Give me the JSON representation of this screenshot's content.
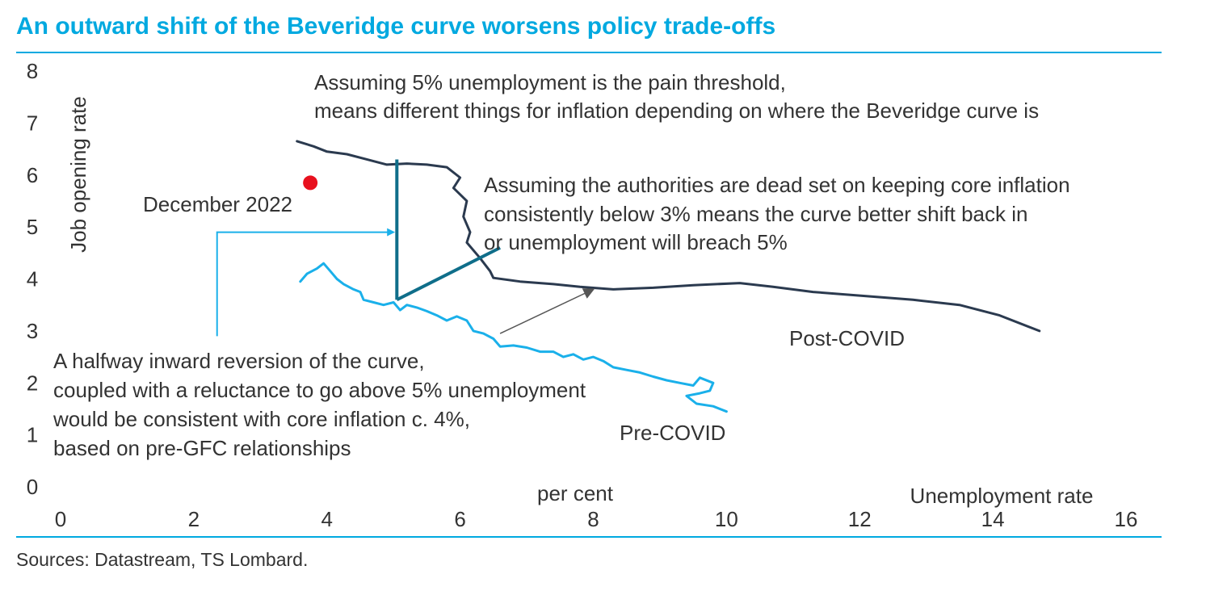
{
  "title": "An outward shift of the Beveridge curve worsens policy trade-offs",
  "source": "Sources: Datastream, TS Lombard.",
  "colors": {
    "title": "#00a9e0",
    "post_covid": "#2b3a4f",
    "pre_covid": "#1ab0ea",
    "arrows": "#0f6e8a",
    "marker": "#e8101e",
    "annotation_arrow": "#555555"
  },
  "chart_data": {
    "type": "line",
    "title": "An outward shift of the Beveridge curve worsens policy trade-offs",
    "xlabel": "Unemployment rate",
    "xunit": "per cent",
    "ylabel": "Job opening rate",
    "xlim": [
      0,
      16
    ],
    "ylim": [
      0,
      8
    ],
    "xticks": [
      "0",
      "2",
      "4",
      "6",
      "8",
      "10",
      "12",
      "14",
      "16"
    ],
    "yticks": [
      "0",
      "1",
      "2",
      "3",
      "4",
      "5",
      "6",
      "7",
      "8"
    ],
    "grid": false,
    "series": [
      {
        "name": "Post-COVID",
        "points": [
          [
            3.55,
            6.65
          ],
          [
            3.8,
            6.55
          ],
          [
            4.0,
            6.45
          ],
          [
            4.3,
            6.4
          ],
          [
            4.6,
            6.3
          ],
          [
            4.9,
            6.2
          ],
          [
            5.2,
            6.22
          ],
          [
            5.5,
            6.2
          ],
          [
            5.8,
            6.15
          ],
          [
            6.0,
            5.95
          ],
          [
            5.9,
            5.75
          ],
          [
            6.1,
            5.5
          ],
          [
            6.05,
            5.2
          ],
          [
            6.15,
            4.9
          ],
          [
            6.1,
            4.7
          ],
          [
            6.3,
            4.4
          ],
          [
            6.45,
            4.15
          ],
          [
            6.5,
            4.02
          ],
          [
            6.9,
            3.95
          ],
          [
            7.4,
            3.9
          ],
          [
            7.8,
            3.85
          ],
          [
            8.3,
            3.8
          ],
          [
            8.9,
            3.83
          ],
          [
            9.5,
            3.88
          ],
          [
            10.2,
            3.92
          ],
          [
            10.7,
            3.85
          ],
          [
            11.3,
            3.75
          ],
          [
            12.0,
            3.68
          ],
          [
            12.8,
            3.6
          ],
          [
            13.5,
            3.5
          ],
          [
            14.1,
            3.3
          ],
          [
            14.7,
            3.0
          ]
        ]
      },
      {
        "name": "Pre-COVID",
        "points": [
          [
            3.6,
            3.95
          ],
          [
            3.7,
            4.1
          ],
          [
            3.85,
            4.2
          ],
          [
            3.95,
            4.3
          ],
          [
            4.05,
            4.15
          ],
          [
            4.15,
            4.0
          ],
          [
            4.25,
            3.9
          ],
          [
            4.4,
            3.8
          ],
          [
            4.5,
            3.75
          ],
          [
            4.55,
            3.6
          ],
          [
            4.7,
            3.55
          ],
          [
            4.85,
            3.5
          ],
          [
            5.0,
            3.55
          ],
          [
            5.1,
            3.4
          ],
          [
            5.2,
            3.5
          ],
          [
            5.35,
            3.45
          ],
          [
            5.5,
            3.38
          ],
          [
            5.65,
            3.3
          ],
          [
            5.8,
            3.2
          ],
          [
            5.95,
            3.28
          ],
          [
            6.1,
            3.2
          ],
          [
            6.2,
            3.0
          ],
          [
            6.35,
            2.95
          ],
          [
            6.5,
            2.85
          ],
          [
            6.6,
            2.7
          ],
          [
            6.8,
            2.72
          ],
          [
            7.0,
            2.68
          ],
          [
            7.2,
            2.6
          ],
          [
            7.4,
            2.6
          ],
          [
            7.55,
            2.5
          ],
          [
            7.7,
            2.55
          ],
          [
            7.85,
            2.45
          ],
          [
            8.0,
            2.5
          ],
          [
            8.15,
            2.42
          ],
          [
            8.3,
            2.3
          ],
          [
            8.5,
            2.25
          ],
          [
            8.7,
            2.2
          ],
          [
            8.9,
            2.12
          ],
          [
            9.1,
            2.05
          ],
          [
            9.3,
            2.0
          ],
          [
            9.5,
            1.95
          ],
          [
            9.6,
            2.1
          ],
          [
            9.8,
            2.0
          ],
          [
            9.75,
            1.85
          ],
          [
            9.6,
            1.8
          ],
          [
            9.4,
            1.75
          ],
          [
            9.55,
            1.6
          ],
          [
            9.8,
            1.55
          ],
          [
            10.0,
            1.45
          ]
        ]
      }
    ],
    "markers": [
      {
        "label": "December 2022",
        "x": 3.75,
        "y": 5.85
      }
    ],
    "arrows": [
      {
        "from": [
          5.05,
          3.6
        ],
        "to": [
          5.05,
          6.3
        ]
      },
      {
        "from": [
          5.05,
          3.6
        ],
        "to": [
          6.6,
          4.6
        ]
      },
      {
        "from": [
          2.35,
          2.9
        ],
        "to": [
          2.35,
          4.9
        ],
        "pointer_to": [
          5.0,
          4.9
        ]
      },
      {
        "from": [
          6.6,
          2.95
        ],
        "to": [
          8.0,
          3.8
        ]
      }
    ],
    "annotations": {
      "top": [
        "Assuming 5% unemployment is the pain threshold,",
        "means different things for inflation depending on where the Beveridge curve is"
      ],
      "middle": [
        "Assuming the authorities are dead set on keeping core inflation",
        "consistently below 3% means the curve better shift back in",
        "or unemployment will breach 5%"
      ],
      "bottom": [
        "A halfway inward reversion of the curve,",
        "coupled with a reluctance to go above 5% unemployment",
        "would be consistent with core inflation c. 4%,",
        "based on pre-GFC relationships"
      ],
      "post_covid_label": "Post-COVID",
      "pre_covid_label": "Pre-COVID",
      "marker_label": "December 2022"
    }
  }
}
